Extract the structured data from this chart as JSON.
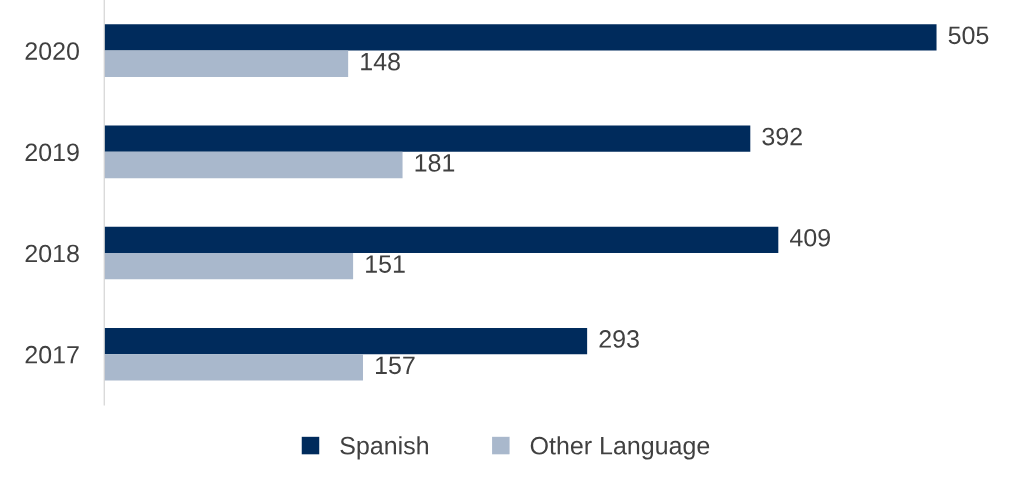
{
  "chart_data": {
    "type": "bar",
    "orientation": "horizontal",
    "categories": [
      "2020",
      "2019",
      "2018",
      "2017"
    ],
    "series": [
      {
        "name": "Spanish",
        "color": "#002b5c",
        "values": [
          505,
          392,
          409,
          293
        ]
      },
      {
        "name": "Other Language",
        "color": "#a9b8cc",
        "values": [
          148,
          181,
          151,
          157
        ]
      }
    ],
    "data_labels": true,
    "legend": "bottom",
    "grid": false,
    "tick_labels": "y"
  }
}
